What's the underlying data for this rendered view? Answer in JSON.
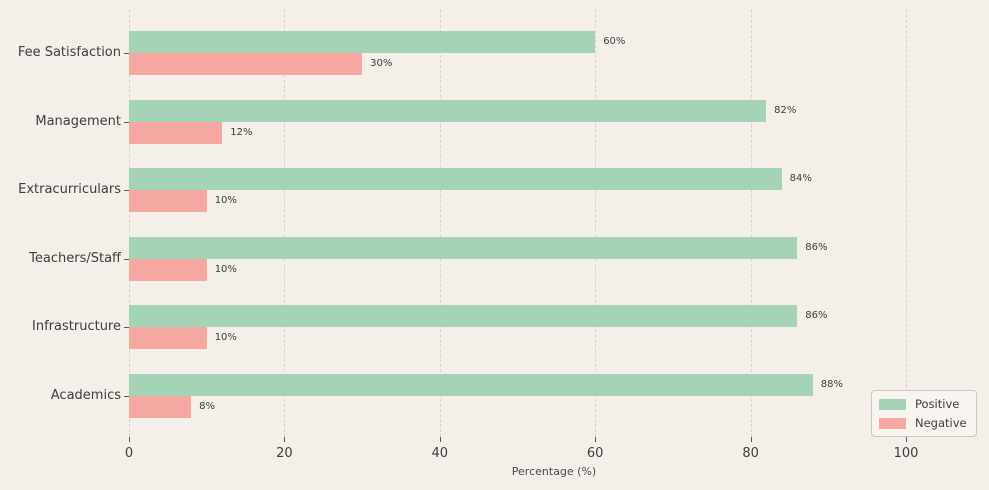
{
  "chart_data": {
    "type": "bar",
    "orientation": "horizontal",
    "title": "",
    "xlabel": "Percentage (%)",
    "ylabel": "",
    "categories": [
      "Fee Satisfaction",
      "Management",
      "Extracurriculars",
      "Teachers/Staff",
      "Infrastructure",
      "Academics"
    ],
    "series": [
      {
        "name": "Positive",
        "color": "#a5d3b5",
        "values": [
          60,
          82,
          84,
          86,
          86,
          88
        ],
        "labels": [
          "60%",
          "82%",
          "84%",
          "86%",
          "86%",
          "88%"
        ]
      },
      {
        "name": "Negative",
        "color": "#f5a7a1",
        "values": [
          30,
          12,
          10,
          10,
          10,
          8
        ],
        "labels": [
          "30%",
          "12%",
          "10%",
          "10%",
          "10%",
          "8%"
        ]
      }
    ],
    "x_ticks": [
      0,
      20,
      40,
      60,
      80,
      100
    ],
    "xlim": [
      0,
      109.5
    ],
    "grid": "vertical-dashed",
    "legend": {
      "position": "lower right",
      "entries": [
        "Positive",
        "Negative"
      ]
    }
  },
  "colors": {
    "background": "#f4efe9",
    "positive": "#a5d3b5",
    "negative": "#f5a7a1",
    "gridline": "#d7d2cd",
    "text": "#3d3d3d"
  }
}
